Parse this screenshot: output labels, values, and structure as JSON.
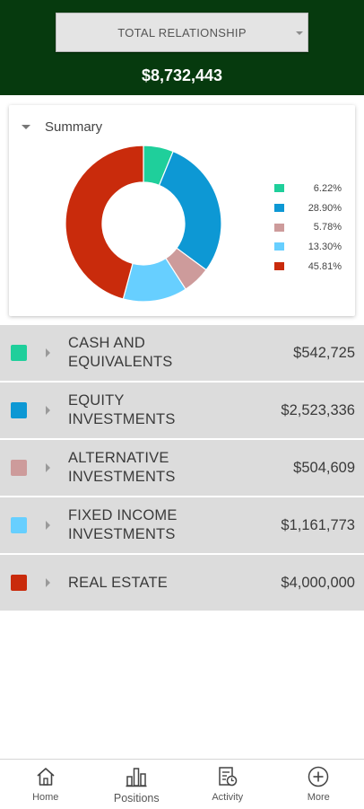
{
  "header": {
    "relationship_select_label": "TOTAL RELATIONSHIP",
    "total_value": "$8,732,443",
    "background_color": "#063a0e"
  },
  "summary": {
    "title": "Summary",
    "legend": [
      {
        "pct": "6.22%",
        "color": "#1fcf9b"
      },
      {
        "pct": "28.90%",
        "color": "#0d98d4"
      },
      {
        "pct": "5.78%",
        "color": "#cd9b9b"
      },
      {
        "pct": "13.30%",
        "color": "#67cfff"
      },
      {
        "pct": "45.81%",
        "color": "#c92b0c"
      }
    ]
  },
  "chart_data": {
    "type": "pie",
    "values": [
      6.22,
      28.9,
      5.78,
      13.3,
      45.81
    ],
    "colors": [
      "#1fcf9b",
      "#0d98d4",
      "#cd9b9b",
      "#67cfff",
      "#c92b0c"
    ],
    "legend_position": "right"
  },
  "positions": [
    {
      "name": "CASH AND EQUIVALENTS",
      "amount": "$542,725",
      "color": "#1fcf9b"
    },
    {
      "name": "EQUITY INVESTMENTS",
      "amount": "$2,523,336",
      "color": "#0d98d4"
    },
    {
      "name": "ALTERNATIVE INVESTMENTS",
      "amount": "$504,609",
      "color": "#cd9b9b"
    },
    {
      "name": "FIXED INCOME INVESTMENTS",
      "amount": "$1,161,773",
      "color": "#67cfff"
    },
    {
      "name": "REAL ESTATE",
      "amount": "$4,000,000",
      "color": "#c92b0c"
    }
  ],
  "nav": [
    {
      "label": "Home",
      "icon": "home-icon"
    },
    {
      "label": "Positions",
      "icon": "bar-chart-icon"
    },
    {
      "label": "Activity",
      "icon": "activity-icon"
    },
    {
      "label": "More",
      "icon": "plus-circle-icon"
    }
  ]
}
